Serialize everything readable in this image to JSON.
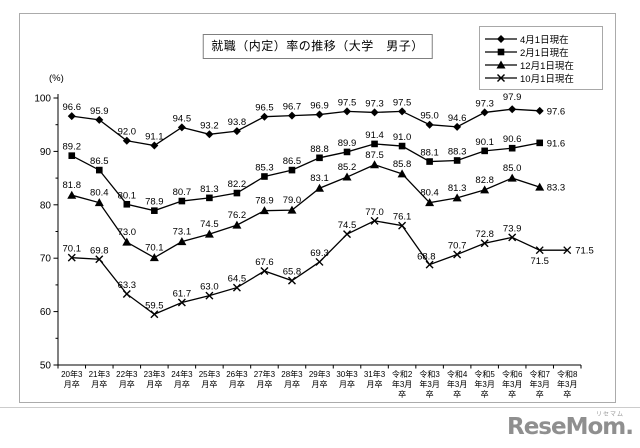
{
  "chart": {
    "title": "就職（内定）率の推移（大学　男子）",
    "unit_label": "(%)",
    "legend": [
      {
        "label": "4月1日現在",
        "marker": "diamond"
      },
      {
        "label": "2月1日現在",
        "marker": "square"
      },
      {
        "label": "12月1日現在",
        "marker": "triangle"
      },
      {
        "label": "10月1日現在",
        "marker": "x"
      }
    ],
    "line_color": "#000000"
  },
  "chart_data": {
    "type": "line",
    "title": "就職（内定）率の推移（大学　男子）",
    "ylabel": "(%)",
    "ylim": [
      50,
      100
    ],
    "yticks": [
      50,
      60,
      70,
      80,
      90,
      100
    ],
    "grid": false,
    "legend_position": "top-right",
    "categories": [
      "20年3月卒",
      "21年3月卒",
      "22年3月卒",
      "23年3月卒",
      "24年3月卒",
      "25年3月卒",
      "26年3月卒",
      "27年3月卒",
      "28年3月卒",
      "29年3月卒",
      "30年3月卒",
      "31年3月卒",
      "令和2年3月卒",
      "令和3年3月卒",
      "令和4年3月卒",
      "令和5年3月卒",
      "令和6年3月卒",
      "令和7年3月卒",
      "令和8年3月卒"
    ],
    "series": [
      {
        "name": "4月1日現在",
        "marker": "diamond",
        "values": [
          96.6,
          95.9,
          92.0,
          91.1,
          94.5,
          93.2,
          93.8,
          96.5,
          96.7,
          96.9,
          97.5,
          97.3,
          97.5,
          95.0,
          94.6,
          97.3,
          97.9,
          97.6,
          null
        ]
      },
      {
        "name": "2月1日現在",
        "marker": "square",
        "values": [
          89.2,
          86.5,
          80.1,
          78.9,
          80.7,
          81.3,
          82.2,
          85.3,
          86.5,
          88.8,
          89.9,
          91.4,
          91.0,
          88.1,
          88.3,
          90.1,
          90.6,
          91.6,
          null
        ]
      },
      {
        "name": "12月1日現在",
        "marker": "triangle",
        "values": [
          81.8,
          80.4,
          73.0,
          70.1,
          73.1,
          74.5,
          76.2,
          78.9,
          79.0,
          83.1,
          85.2,
          87.5,
          85.8,
          80.4,
          81.3,
          82.8,
          85.0,
          83.3,
          null
        ]
      },
      {
        "name": "10月1日現在",
        "marker": "x",
        "values": [
          70.1,
          69.8,
          63.3,
          59.5,
          61.7,
          63.0,
          64.5,
          67.6,
          65.8,
          69.3,
          74.5,
          77.0,
          76.1,
          68.8,
          70.7,
          72.8,
          73.9,
          71.5,
          71.5
        ]
      }
    ]
  },
  "footer": {
    "logo_text": "ReseMom.",
    "logo_ruby": "リセマム"
  }
}
